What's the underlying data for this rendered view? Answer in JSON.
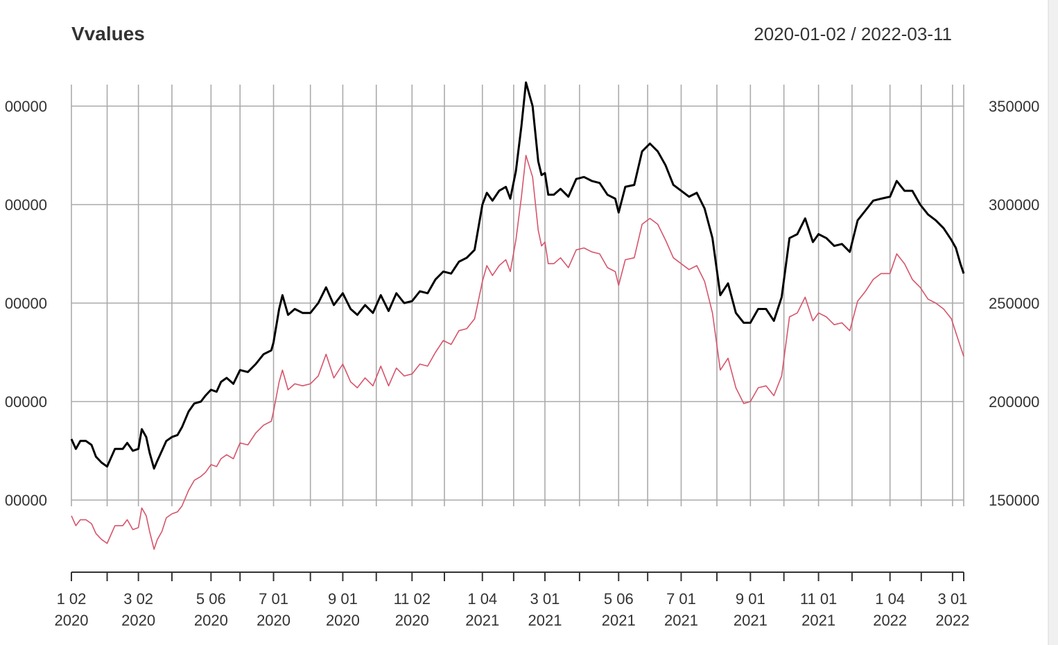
{
  "chart_data": {
    "type": "line",
    "title": "Vvalues",
    "date_range": "2020-01-02 / 2022-03-11",
    "x_range": [
      "2020-01-02",
      "2022-03-11"
    ],
    "ylim": [
      120000,
      365000
    ],
    "y_ticks_left": [
      "00000",
      "00000",
      "00000",
      "00000",
      "00000"
    ],
    "y_ticks_right": [
      "350000",
      "300000",
      "250000",
      "200000",
      "150000"
    ],
    "y_tick_values": [
      350000,
      300000,
      250000,
      200000,
      150000
    ],
    "x_ticks": [
      {
        "date": "2020-01-02",
        "line1": "1 02",
        "line2": "2020"
      },
      {
        "date": "2020-03-02",
        "line1": "3 02",
        "line2": "2020"
      },
      {
        "date": "2020-05-06",
        "line1": "5 06",
        "line2": "2020"
      },
      {
        "date": "2020-07-01",
        "line1": "7 01",
        "line2": "2020"
      },
      {
        "date": "2020-09-01",
        "line1": "9 01",
        "line2": "2020"
      },
      {
        "date": "2020-11-02",
        "line1": "11 02",
        "line2": "2020"
      },
      {
        "date": "2021-01-04",
        "line1": "1 04",
        "line2": "2021"
      },
      {
        "date": "2021-03-01",
        "line1": "3 01",
        "line2": "2021"
      },
      {
        "date": "2021-05-06",
        "line1": "5 06",
        "line2": "2021"
      },
      {
        "date": "2021-07-01",
        "line1": "7 01",
        "line2": "2021"
      },
      {
        "date": "2021-09-01",
        "line1": "9 01",
        "line2": "2021"
      },
      {
        "date": "2021-11-01",
        "line1": "11 01",
        "line2": "2021"
      },
      {
        "date": "2022-01-04",
        "line1": "1 04",
        "line2": "2022"
      },
      {
        "date": "2022-03-01",
        "line1": "3 01",
        "line2": "2022"
      }
    ],
    "minor_tick_dates": [
      "2020-02-03",
      "2020-04-01",
      "2020-06-01",
      "2020-08-03",
      "2020-10-01",
      "2020-12-01",
      "2021-02-01",
      "2021-04-01",
      "2021-06-01",
      "2021-08-02",
      "2021-10-01",
      "2021-12-01",
      "2022-02-01"
    ],
    "grid": true,
    "series": [
      {
        "color": "#000000",
        "x": [
          "2020-01-02",
          "2020-01-06",
          "2020-01-10",
          "2020-01-15",
          "2020-01-20",
          "2020-01-24",
          "2020-01-29",
          "2020-02-03",
          "2020-02-10",
          "2020-02-17",
          "2020-02-21",
          "2020-02-26",
          "2020-03-02",
          "2020-03-05",
          "2020-03-09",
          "2020-03-12",
          "2020-03-16",
          "2020-03-19",
          "2020-03-23",
          "2020-03-27",
          "2020-04-01",
          "2020-04-06",
          "2020-04-10",
          "2020-04-16",
          "2020-04-21",
          "2020-04-27",
          "2020-05-01",
          "2020-05-06",
          "2020-05-11",
          "2020-05-15",
          "2020-05-20",
          "2020-05-26",
          "2020-06-01",
          "2020-06-08",
          "2020-06-15",
          "2020-06-22",
          "2020-06-29",
          "2020-07-01",
          "2020-07-06",
          "2020-07-09",
          "2020-07-14",
          "2020-07-20",
          "2020-07-27",
          "2020-08-03",
          "2020-08-10",
          "2020-08-17",
          "2020-08-24",
          "2020-09-01",
          "2020-09-08",
          "2020-09-14",
          "2020-09-21",
          "2020-09-28",
          "2020-10-05",
          "2020-10-12",
          "2020-10-19",
          "2020-10-26",
          "2020-11-02",
          "2020-11-09",
          "2020-11-16",
          "2020-11-23",
          "2020-11-30",
          "2020-12-07",
          "2020-12-14",
          "2020-12-21",
          "2020-12-28",
          "2021-01-04",
          "2021-01-08",
          "2021-01-13",
          "2021-01-19",
          "2021-01-25",
          "2021-01-29",
          "2021-02-03",
          "2021-02-08",
          "2021-02-12",
          "2021-02-18",
          "2021-02-23",
          "2021-02-26",
          "2021-03-01",
          "2021-03-04",
          "2021-03-09",
          "2021-03-15",
          "2021-03-22",
          "2021-03-29",
          "2021-04-05",
          "2021-04-12",
          "2021-04-19",
          "2021-04-26",
          "2021-05-03",
          "2021-05-06",
          "2021-05-12",
          "2021-05-20",
          "2021-05-27",
          "2021-06-03",
          "2021-06-10",
          "2021-06-17",
          "2021-06-24",
          "2021-07-01",
          "2021-07-08",
          "2021-07-15",
          "2021-07-22",
          "2021-07-29",
          "2021-08-05",
          "2021-08-12",
          "2021-08-19",
          "2021-08-26",
          "2021-09-01",
          "2021-09-08",
          "2021-09-15",
          "2021-09-22",
          "2021-09-29",
          "2021-10-06",
          "2021-10-13",
          "2021-10-20",
          "2021-10-27",
          "2021-11-01",
          "2021-11-08",
          "2021-11-15",
          "2021-11-22",
          "2021-11-29",
          "2021-12-06",
          "2021-12-13",
          "2021-12-20",
          "2021-12-27",
          "2022-01-04",
          "2022-01-10",
          "2022-01-17",
          "2022-01-24",
          "2022-01-31",
          "2022-02-07",
          "2022-02-14",
          "2022-02-21",
          "2022-02-28",
          "2022-03-04",
          "2022-03-08",
          "2022-03-11"
        ],
        "y": [
          181000,
          176000,
          180000,
          180000,
          178000,
          172000,
          169000,
          167000,
          176000,
          176000,
          179000,
          175000,
          176000,
          186000,
          182000,
          174000,
          166000,
          170000,
          175000,
          180000,
          182000,
          183000,
          187000,
          195000,
          199000,
          200000,
          203000,
          206000,
          205000,
          210000,
          212000,
          209000,
          216000,
          215000,
          219000,
          224000,
          226000,
          230000,
          247000,
          254000,
          244000,
          247000,
          245000,
          245000,
          250000,
          258000,
          249000,
          255000,
          247000,
          244000,
          249000,
          245000,
          254000,
          246000,
          255000,
          250000,
          251000,
          256000,
          255000,
          262000,
          266000,
          265000,
          271000,
          273000,
          277000,
          300000,
          306000,
          302000,
          307000,
          309000,
          303000,
          317000,
          340000,
          362000,
          350000,
          322000,
          315000,
          316000,
          305000,
          305000,
          308000,
          304000,
          313000,
          314000,
          312000,
          311000,
          305000,
          303000,
          296000,
          309000,
          310000,
          327000,
          331000,
          327000,
          320000,
          310000,
          307000,
          304000,
          306000,
          298000,
          283000,
          254000,
          260000,
          245000,
          240000,
          240000,
          247000,
          247000,
          241000,
          253000,
          283000,
          285000,
          293000,
          281000,
          285000,
          283000,
          279000,
          280000,
          276000,
          292000,
          297000,
          302000,
          303000,
          304000,
          312000,
          307000,
          307000,
          300000,
          295000,
          292000,
          288000,
          282000,
          278000,
          270000,
          265000
        ]
      },
      {
        "color": "#d6546b",
        "x": [
          "2020-01-02",
          "2020-01-06",
          "2020-01-10",
          "2020-01-15",
          "2020-01-20",
          "2020-01-24",
          "2020-01-29",
          "2020-02-03",
          "2020-02-10",
          "2020-02-17",
          "2020-02-21",
          "2020-02-26",
          "2020-03-02",
          "2020-03-05",
          "2020-03-09",
          "2020-03-12",
          "2020-03-16",
          "2020-03-19",
          "2020-03-23",
          "2020-03-27",
          "2020-04-01",
          "2020-04-06",
          "2020-04-10",
          "2020-04-16",
          "2020-04-21",
          "2020-04-27",
          "2020-05-01",
          "2020-05-06",
          "2020-05-11",
          "2020-05-15",
          "2020-05-20",
          "2020-05-26",
          "2020-06-01",
          "2020-06-08",
          "2020-06-15",
          "2020-06-22",
          "2020-06-29",
          "2020-07-01",
          "2020-07-06",
          "2020-07-09",
          "2020-07-14",
          "2020-07-20",
          "2020-07-27",
          "2020-08-03",
          "2020-08-10",
          "2020-08-17",
          "2020-08-24",
          "2020-09-01",
          "2020-09-08",
          "2020-09-14",
          "2020-09-21",
          "2020-09-28",
          "2020-10-05",
          "2020-10-12",
          "2020-10-19",
          "2020-10-26",
          "2020-11-02",
          "2020-11-09",
          "2020-11-16",
          "2020-11-23",
          "2020-11-30",
          "2020-12-07",
          "2020-12-14",
          "2020-12-21",
          "2020-12-28",
          "2021-01-04",
          "2021-01-08",
          "2021-01-13",
          "2021-01-19",
          "2021-01-25",
          "2021-01-29",
          "2021-02-03",
          "2021-02-08",
          "2021-02-12",
          "2021-02-18",
          "2021-02-23",
          "2021-02-26",
          "2021-03-01",
          "2021-03-04",
          "2021-03-09",
          "2021-03-15",
          "2021-03-22",
          "2021-03-29",
          "2021-04-05",
          "2021-04-12",
          "2021-04-19",
          "2021-04-26",
          "2021-05-03",
          "2021-05-06",
          "2021-05-12",
          "2021-05-20",
          "2021-05-27",
          "2021-06-03",
          "2021-06-10",
          "2021-06-17",
          "2021-06-24",
          "2021-07-01",
          "2021-07-08",
          "2021-07-15",
          "2021-07-22",
          "2021-07-29",
          "2021-08-05",
          "2021-08-12",
          "2021-08-19",
          "2021-08-26",
          "2021-09-01",
          "2021-09-08",
          "2021-09-15",
          "2021-09-22",
          "2021-09-29",
          "2021-10-06",
          "2021-10-13",
          "2021-10-20",
          "2021-10-27",
          "2021-11-01",
          "2021-11-08",
          "2021-11-15",
          "2021-11-22",
          "2021-11-29",
          "2021-12-06",
          "2021-12-13",
          "2021-12-20",
          "2021-12-27",
          "2022-01-04",
          "2022-01-10",
          "2022-01-17",
          "2022-01-24",
          "2022-01-31",
          "2022-02-07",
          "2022-02-14",
          "2022-02-21",
          "2022-02-28",
          "2022-03-04",
          "2022-03-08",
          "2022-03-11"
        ],
        "y": [
          142000,
          137000,
          140000,
          140000,
          138000,
          133000,
          130000,
          128000,
          137000,
          137000,
          140000,
          135000,
          136000,
          146000,
          142000,
          134000,
          125000,
          130000,
          134000,
          141000,
          143000,
          144000,
          147000,
          155000,
          160000,
          162000,
          164000,
          168000,
          167000,
          171000,
          173000,
          171000,
          179000,
          178000,
          184000,
          188000,
          190000,
          195000,
          210000,
          216000,
          206000,
          209000,
          208000,
          209000,
          213000,
          224000,
          212000,
          219000,
          210000,
          207000,
          212000,
          208000,
          218000,
          208000,
          217000,
          213000,
          214000,
          219000,
          218000,
          225000,
          231000,
          229000,
          236000,
          237000,
          242000,
          261000,
          269000,
          264000,
          269000,
          272000,
          266000,
          282000,
          304000,
          325000,
          314000,
          287000,
          279000,
          281000,
          270000,
          270000,
          273000,
          268000,
          277000,
          278000,
          276000,
          275000,
          268000,
          266000,
          259000,
          272000,
          273000,
          290000,
          293000,
          290000,
          282000,
          273000,
          270000,
          267000,
          269000,
          261000,
          245000,
          216000,
          222000,
          207000,
          199000,
          200000,
          207000,
          208000,
          203000,
          213000,
          243000,
          245000,
          253000,
          241000,
          245000,
          243000,
          239000,
          240000,
          236000,
          251000,
          256000,
          262000,
          265000,
          265000,
          275000,
          270000,
          262000,
          258000,
          252000,
          250000,
          247000,
          242000,
          235000,
          228000,
          223000
        ]
      }
    ]
  }
}
